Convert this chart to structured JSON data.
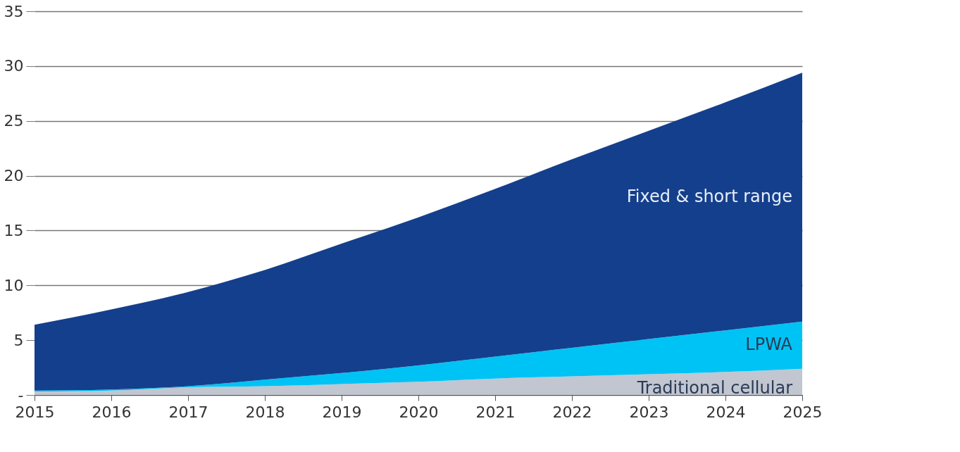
{
  "chart_data": {
    "type": "area",
    "stacked": true,
    "x": [
      2015,
      2016,
      2017,
      2018,
      2019,
      2020,
      2021,
      2022,
      2023,
      2024,
      2025
    ],
    "xlim": [
      2015,
      2025
    ],
    "xticks": [
      2015,
      2016,
      2017,
      2018,
      2019,
      2020,
      2021,
      2022,
      2023,
      2024,
      2025
    ],
    "ylim": [
      0,
      35
    ],
    "yticks": [
      {
        "value": 0,
        "label": "-"
      },
      5,
      10,
      15,
      20,
      25,
      30,
      35
    ],
    "grid": "y",
    "legend": false,
    "series": [
      {
        "name": "Traditional cellular",
        "color": "#c1c6d0",
        "values": [
          0.3,
          0.4,
          0.7,
          0.8,
          1.0,
          1.2,
          1.5,
          1.7,
          1.9,
          2.1,
          2.4
        ]
      },
      {
        "name": "LPWA",
        "color": "#00c3f5",
        "values": [
          0.1,
          0.1,
          0.1,
          0.6,
          1.0,
          1.5,
          2.0,
          2.6,
          3.2,
          3.8,
          4.3
        ]
      },
      {
        "name": "Fixed & short range",
        "color": "#143f8c",
        "values": [
          6.0,
          7.3,
          8.6,
          10.0,
          11.8,
          13.5,
          15.3,
          17.2,
          19.0,
          20.8,
          22.7
        ]
      }
    ]
  }
}
